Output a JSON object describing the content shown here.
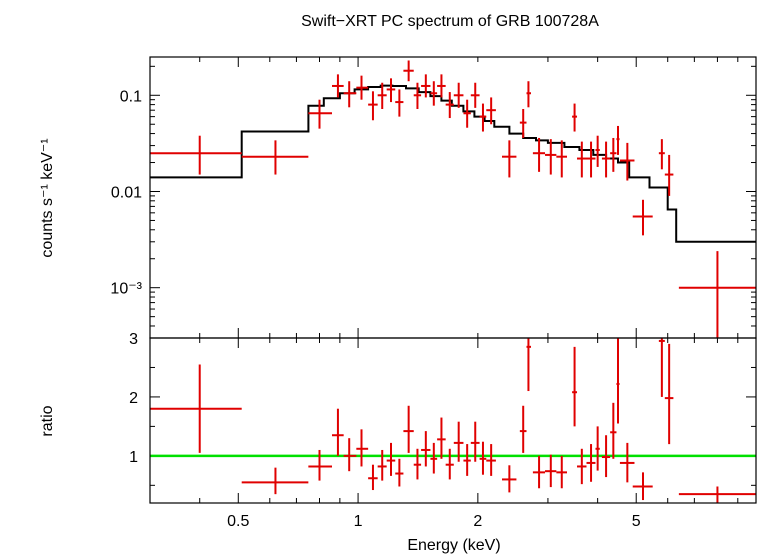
{
  "chart_data": [
    {
      "type": "scatter",
      "title": "Swift−XRT PC spectrum of GRB 100728A",
      "ylabel": "counts s⁻¹ keV⁻¹",
      "y_scale": "log",
      "ylim": [
        0.0003,
        0.25
      ],
      "xlim": [
        0.3,
        10
      ],
      "x_scale": "log",
      "y_ticks": [
        {
          "value": 0.1,
          "label": "0.1"
        },
        {
          "value": 0.01,
          "label": "0.01"
        },
        {
          "value": 0.001,
          "label": "10⁻³"
        }
      ],
      "model_color": "#000000",
      "data_color": "#e00000",
      "model_step": {
        "edges": [
          0.3,
          0.51,
          0.75,
          0.82,
          0.9,
          0.98,
          1.06,
          1.14,
          1.22,
          1.32,
          1.42,
          1.52,
          1.62,
          1.72,
          1.84,
          1.96,
          2.08,
          2.2,
          2.4,
          2.6,
          2.8,
          3.0,
          3.3,
          3.6,
          3.9,
          4.2,
          4.5,
          4.8,
          5.4,
          6.0,
          6.3,
          10.0
        ],
        "values": [
          0.014,
          0.042,
          0.078,
          0.093,
          0.105,
          0.115,
          0.122,
          0.126,
          0.125,
          0.118,
          0.108,
          0.098,
          0.088,
          0.078,
          0.068,
          0.06,
          0.054,
          0.047,
          0.04,
          0.036,
          0.034,
          0.032,
          0.029,
          0.027,
          0.024,
          0.022,
          0.02,
          0.014,
          0.011,
          0.0065,
          0.003
        ]
      },
      "series": [
        {
          "points": [
            {
              "x": 0.4,
              "xlo": 0.3,
              "xhi": 0.51,
              "y": 0.025,
              "ylo": 0.015,
              "yhi": 0.038
            },
            {
              "x": 0.62,
              "xlo": 0.51,
              "xhi": 0.75,
              "y": 0.023,
              "ylo": 0.015,
              "yhi": 0.034
            },
            {
              "x": 0.8,
              "xlo": 0.75,
              "xhi": 0.86,
              "y": 0.065,
              "ylo": 0.045,
              "yhi": 0.09
            },
            {
              "x": 0.89,
              "xlo": 0.86,
              "xhi": 0.92,
              "y": 0.125,
              "ylo": 0.095,
              "yhi": 0.165
            },
            {
              "x": 0.95,
              "xlo": 0.92,
              "xhi": 0.99,
              "y": 0.105,
              "ylo": 0.075,
              "yhi": 0.14
            },
            {
              "x": 1.02,
              "xlo": 0.99,
              "xhi": 1.06,
              "y": 0.12,
              "ylo": 0.09,
              "yhi": 0.16
            },
            {
              "x": 1.09,
              "xlo": 1.06,
              "xhi": 1.12,
              "y": 0.08,
              "ylo": 0.055,
              "yhi": 0.11
            },
            {
              "x": 1.15,
              "xlo": 1.12,
              "xhi": 1.18,
              "y": 0.1,
              "ylo": 0.072,
              "yhi": 0.135
            },
            {
              "x": 1.21,
              "xlo": 1.18,
              "xhi": 1.24,
              "y": 0.115,
              "ylo": 0.085,
              "yhi": 0.15
            },
            {
              "x": 1.27,
              "xlo": 1.24,
              "xhi": 1.3,
              "y": 0.085,
              "ylo": 0.06,
              "yhi": 0.115
            },
            {
              "x": 1.34,
              "xlo": 1.3,
              "xhi": 1.38,
              "y": 0.18,
              "ylo": 0.14,
              "yhi": 0.23
            },
            {
              "x": 1.41,
              "xlo": 1.38,
              "xhi": 1.44,
              "y": 0.1,
              "ylo": 0.072,
              "yhi": 0.135
            },
            {
              "x": 1.48,
              "xlo": 1.44,
              "xhi": 1.52,
              "y": 0.125,
              "ylo": 0.095,
              "yhi": 0.165
            },
            {
              "x": 1.55,
              "xlo": 1.52,
              "xhi": 1.58,
              "y": 0.105,
              "ylo": 0.078,
              "yhi": 0.14
            },
            {
              "x": 1.62,
              "xlo": 1.58,
              "xhi": 1.66,
              "y": 0.125,
              "ylo": 0.095,
              "yhi": 0.165
            },
            {
              "x": 1.7,
              "xlo": 1.66,
              "xhi": 1.74,
              "y": 0.08,
              "ylo": 0.058,
              "yhi": 0.108
            },
            {
              "x": 1.79,
              "xlo": 1.74,
              "xhi": 1.84,
              "y": 0.1,
              "ylo": 0.074,
              "yhi": 0.135
            },
            {
              "x": 1.88,
              "xlo": 1.84,
              "xhi": 1.92,
              "y": 0.065,
              "ylo": 0.046,
              "yhi": 0.09
            },
            {
              "x": 1.97,
              "xlo": 1.92,
              "xhi": 2.02,
              "y": 0.1,
              "ylo": 0.074,
              "yhi": 0.135
            },
            {
              "x": 2.06,
              "xlo": 2.02,
              "xhi": 2.1,
              "y": 0.06,
              "ylo": 0.042,
              "yhi": 0.082
            },
            {
              "x": 2.16,
              "xlo": 2.1,
              "xhi": 2.22,
              "y": 0.07,
              "ylo": 0.05,
              "yhi": 0.095
            },
            {
              "x": 2.4,
              "xlo": 2.3,
              "xhi": 2.5,
              "y": 0.023,
              "ylo": 0.014,
              "yhi": 0.034
            },
            {
              "x": 2.6,
              "xlo": 2.55,
              "xhi": 2.65,
              "y": 0.052,
              "ylo": 0.036,
              "yhi": 0.072
            },
            {
              "x": 2.68,
              "xlo": 2.65,
              "xhi": 2.72,
              "y": 0.105,
              "ylo": 0.075,
              "yhi": 0.14
            },
            {
              "x": 2.85,
              "xlo": 2.75,
              "xhi": 2.95,
              "y": 0.025,
              "ylo": 0.016,
              "yhi": 0.036
            },
            {
              "x": 3.05,
              "xlo": 2.95,
              "xhi": 3.15,
              "y": 0.024,
              "ylo": 0.015,
              "yhi": 0.035
            },
            {
              "x": 3.25,
              "xlo": 3.15,
              "xhi": 3.35,
              "y": 0.023,
              "ylo": 0.014,
              "yhi": 0.034
            },
            {
              "x": 3.5,
              "xlo": 3.45,
              "xhi": 3.55,
              "y": 0.06,
              "ylo": 0.042,
              "yhi": 0.082
            },
            {
              "x": 3.65,
              "xlo": 3.55,
              "xhi": 3.75,
              "y": 0.022,
              "ylo": 0.014,
              "yhi": 0.033
            },
            {
              "x": 3.85,
              "xlo": 3.75,
              "xhi": 3.95,
              "y": 0.022,
              "ylo": 0.014,
              "yhi": 0.033
            },
            {
              "x": 4.0,
              "xlo": 3.95,
              "xhi": 4.05,
              "y": 0.027,
              "ylo": 0.018,
              "yhi": 0.038
            },
            {
              "x": 4.2,
              "xlo": 4.1,
              "xhi": 4.3,
              "y": 0.022,
              "ylo": 0.014,
              "yhi": 0.033
            },
            {
              "x": 4.38,
              "xlo": 4.3,
              "xhi": 4.46,
              "y": 0.025,
              "ylo": 0.016,
              "yhi": 0.036
            },
            {
              "x": 4.5,
              "xlo": 4.46,
              "xhi": 4.54,
              "y": 0.035,
              "ylo": 0.024,
              "yhi": 0.048
            },
            {
              "x": 4.75,
              "xlo": 4.55,
              "xhi": 4.95,
              "y": 0.021,
              "ylo": 0.013,
              "yhi": 0.032
            },
            {
              "x": 5.2,
              "xlo": 4.9,
              "xhi": 5.5,
              "y": 0.0055,
              "ylo": 0.0035,
              "yhi": 0.0082
            },
            {
              "x": 5.8,
              "xlo": 5.7,
              "xhi": 5.9,
              "y": 0.025,
              "ylo": 0.017,
              "yhi": 0.035
            },
            {
              "x": 6.05,
              "xlo": 5.9,
              "xhi": 6.2,
              "y": 0.015,
              "ylo": 0.009,
              "yhi": 0.024
            },
            {
              "x": 8.0,
              "xlo": 6.4,
              "xhi": 10.0,
              "y": 0.001,
              "ylo": 0.0003,
              "yhi": 0.0024
            }
          ]
        }
      ]
    },
    {
      "type": "scatter",
      "ylabel": "ratio",
      "xlabel": "Energy (keV)",
      "x_scale": "log",
      "xlim": [
        0.3,
        10
      ],
      "ylim": [
        0.2,
        3.0
      ],
      "x_ticks": [
        {
          "value": 0.5,
          "label": "0.5"
        },
        {
          "value": 1,
          "label": "1"
        },
        {
          "value": 2,
          "label": "2"
        },
        {
          "value": 5,
          "label": "5"
        }
      ],
      "y_ticks": [
        {
          "value": 1,
          "label": "1"
        },
        {
          "value": 2,
          "label": "2"
        },
        {
          "value": 3,
          "label": "3"
        }
      ],
      "reference_line": {
        "y": 1,
        "color": "#00e000"
      },
      "data_color": "#e00000",
      "series": [
        {
          "points": [
            {
              "x": 0.4,
              "xlo": 0.3,
              "xhi": 0.51,
              "y": 1.8,
              "ylo": 1.05,
              "yhi": 2.55
            },
            {
              "x": 0.62,
              "xlo": 0.51,
              "xhi": 0.75,
              "y": 0.55,
              "ylo": 0.35,
              "yhi": 0.8
            },
            {
              "x": 0.8,
              "xlo": 0.75,
              "xhi": 0.86,
              "y": 0.82,
              "ylo": 0.58,
              "yhi": 1.1
            },
            {
              "x": 0.89,
              "xlo": 0.86,
              "xhi": 0.92,
              "y": 1.35,
              "ylo": 1.0,
              "yhi": 1.8
            },
            {
              "x": 0.95,
              "xlo": 0.92,
              "xhi": 0.99,
              "y": 1.0,
              "ylo": 0.74,
              "yhi": 1.3
            },
            {
              "x": 1.02,
              "xlo": 0.99,
              "xhi": 1.06,
              "y": 1.12,
              "ylo": 0.82,
              "yhi": 1.45
            },
            {
              "x": 1.09,
              "xlo": 1.06,
              "xhi": 1.12,
              "y": 0.62,
              "ylo": 0.42,
              "yhi": 0.85
            },
            {
              "x": 1.15,
              "xlo": 1.12,
              "xhi": 1.18,
              "y": 0.82,
              "ylo": 0.58,
              "yhi": 1.1
            },
            {
              "x": 1.21,
              "xlo": 1.18,
              "xhi": 1.24,
              "y": 0.92,
              "ylo": 0.66,
              "yhi": 1.22
            },
            {
              "x": 1.27,
              "xlo": 1.24,
              "xhi": 1.3,
              "y": 0.7,
              "ylo": 0.48,
              "yhi": 0.95
            },
            {
              "x": 1.34,
              "xlo": 1.3,
              "xhi": 1.38,
              "y": 1.42,
              "ylo": 1.05,
              "yhi": 1.85
            },
            {
              "x": 1.41,
              "xlo": 1.38,
              "xhi": 1.44,
              "y": 0.85,
              "ylo": 0.6,
              "yhi": 1.12
            },
            {
              "x": 1.48,
              "xlo": 1.44,
              "xhi": 1.52,
              "y": 1.1,
              "ylo": 0.82,
              "yhi": 1.42
            },
            {
              "x": 1.55,
              "xlo": 1.52,
              "xhi": 1.58,
              "y": 0.95,
              "ylo": 0.7,
              "yhi": 1.22
            },
            {
              "x": 1.62,
              "xlo": 1.58,
              "xhi": 1.66,
              "y": 1.28,
              "ylo": 0.95,
              "yhi": 1.65
            },
            {
              "x": 1.7,
              "xlo": 1.66,
              "xhi": 1.74,
              "y": 0.85,
              "ylo": 0.6,
              "yhi": 1.12
            },
            {
              "x": 1.79,
              "xlo": 1.74,
              "xhi": 1.84,
              "y": 1.22,
              "ylo": 0.9,
              "yhi": 1.58
            },
            {
              "x": 1.88,
              "xlo": 1.84,
              "xhi": 1.92,
              "y": 0.92,
              "ylo": 0.66,
              "yhi": 1.2
            },
            {
              "x": 1.97,
              "xlo": 1.92,
              "xhi": 2.02,
              "y": 1.22,
              "ylo": 0.9,
              "yhi": 1.58
            },
            {
              "x": 2.06,
              "xlo": 2.02,
              "xhi": 2.1,
              "y": 0.95,
              "ylo": 0.68,
              "yhi": 1.24
            },
            {
              "x": 2.16,
              "xlo": 2.1,
              "xhi": 2.22,
              "y": 0.92,
              "ylo": 0.66,
              "yhi": 1.2
            },
            {
              "x": 2.4,
              "xlo": 2.3,
              "xhi": 2.5,
              "y": 0.6,
              "ylo": 0.38,
              "yhi": 0.84
            },
            {
              "x": 2.6,
              "xlo": 2.55,
              "xhi": 2.65,
              "y": 1.42,
              "ylo": 1.05,
              "yhi": 1.85
            },
            {
              "x": 2.68,
              "xlo": 2.65,
              "xhi": 2.72,
              "y": 2.85,
              "ylo": 2.1,
              "yhi": 3.0
            },
            {
              "x": 2.85,
              "xlo": 2.75,
              "xhi": 2.95,
              "y": 0.72,
              "ylo": 0.45,
              "yhi": 1.0
            },
            {
              "x": 3.05,
              "xlo": 2.95,
              "xhi": 3.15,
              "y": 0.74,
              "ylo": 0.47,
              "yhi": 1.02
            },
            {
              "x": 3.25,
              "xlo": 3.15,
              "xhi": 3.35,
              "y": 0.72,
              "ylo": 0.45,
              "yhi": 1.0
            },
            {
              "x": 3.5,
              "xlo": 3.45,
              "xhi": 3.55,
              "y": 2.08,
              "ylo": 1.5,
              "yhi": 2.85
            },
            {
              "x": 3.65,
              "xlo": 3.55,
              "xhi": 3.75,
              "y": 0.82,
              "ylo": 0.52,
              "yhi": 1.12
            },
            {
              "x": 3.85,
              "xlo": 3.75,
              "xhi": 3.95,
              "y": 0.88,
              "ylo": 0.56,
              "yhi": 1.2
            },
            {
              "x": 4.0,
              "xlo": 3.95,
              "xhi": 4.05,
              "y": 1.12,
              "ylo": 0.75,
              "yhi": 1.5
            },
            {
              "x": 4.2,
              "xlo": 4.1,
              "xhi": 4.3,
              "y": 0.98,
              "ylo": 0.64,
              "yhi": 1.35
            },
            {
              "x": 4.38,
              "xlo": 4.3,
              "xhi": 4.46,
              "y": 1.4,
              "ylo": 0.95,
              "yhi": 1.9
            },
            {
              "x": 4.5,
              "xlo": 4.46,
              "xhi": 4.54,
              "y": 2.22,
              "ylo": 1.55,
              "yhi": 3.0
            },
            {
              "x": 4.75,
              "xlo": 4.55,
              "xhi": 4.95,
              "y": 0.88,
              "ylo": 0.55,
              "yhi": 1.22
            },
            {
              "x": 5.2,
              "xlo": 4.9,
              "xhi": 5.5,
              "y": 0.48,
              "ylo": 0.25,
              "yhi": 0.72
            },
            {
              "x": 5.8,
              "xlo": 5.7,
              "xhi": 5.9,
              "y": 2.95,
              "ylo": 2.0,
              "yhi": 3.0
            },
            {
              "x": 6.05,
              "xlo": 5.9,
              "xhi": 6.2,
              "y": 1.98,
              "ylo": 1.2,
              "yhi": 2.9
            },
            {
              "x": 8.0,
              "xlo": 6.4,
              "xhi": 10.0,
              "y": 0.35,
              "ylo": 0.2,
              "yhi": 0.48
            }
          ]
        }
      ]
    }
  ]
}
